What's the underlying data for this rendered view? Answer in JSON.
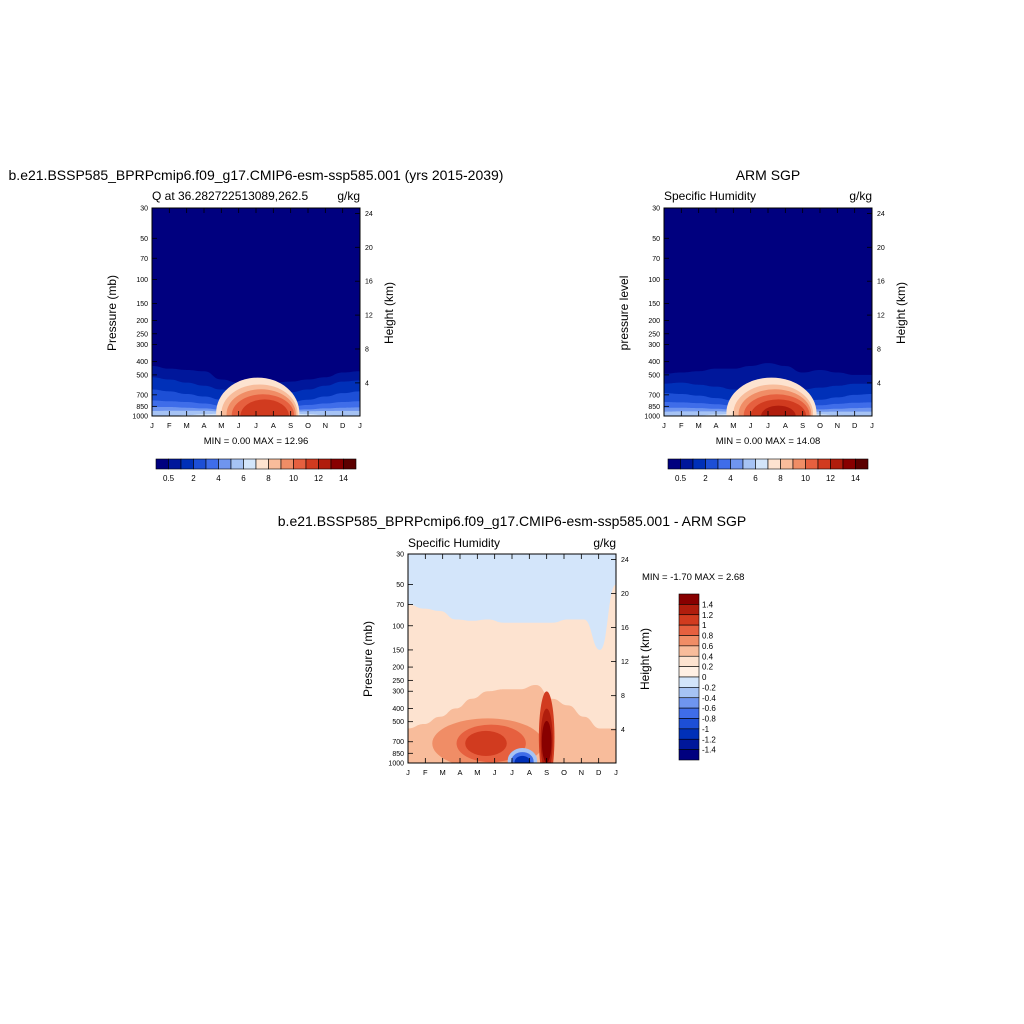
{
  "chart_data": [
    {
      "type": "heatmap",
      "title": "b.e21.BSSP585_BPRPcmip6.f09_g17.CMIP6-esm-ssp585.001 (yrs 2015-2039)",
      "left_label": "Q at 36.282722513089,262.5",
      "right_label": "g/kg",
      "ylabel": "Pressure (mb)",
      "ylabel_right": "Height (km)",
      "x_ticks": [
        "J",
        "F",
        "M",
        "A",
        "M",
        "J",
        "J",
        "A",
        "S",
        "O",
        "N",
        "D",
        "J"
      ],
      "y_ticks": [
        30,
        50,
        70,
        100,
        150,
        200,
        250,
        300,
        400,
        500,
        700,
        850,
        1000
      ],
      "height_ticks": [
        24,
        20,
        16,
        12,
        8,
        4
      ],
      "ylim": [
        30,
        1000
      ],
      "y_scale": "log",
      "minmax_text": "MIN =   0.00 MAX =  12.96",
      "min": 0.0,
      "max": 12.96,
      "colorbar": {
        "orientation": "horizontal",
        "labels": [
          "0.5",
          "2",
          "4",
          "6",
          "8",
          "10",
          "12",
          "14"
        ],
        "levels": [
          0.5,
          1,
          2,
          3,
          4,
          5,
          6,
          7,
          8,
          9,
          10,
          11,
          12,
          13,
          14
        ],
        "colors": [
          "#00007f",
          "#00179b",
          "#0030b8",
          "#1d4fd6",
          "#3f6de9",
          "#6f95ef",
          "#a6c3f4",
          "#d3e5fa",
          "#fde3d0",
          "#f8bc9b",
          "#f08d66",
          "#e6603f",
          "#d13b1f",
          "#b01d0d",
          "#880000",
          "#5c0000"
        ]
      },
      "contours": [
        {
          "level": 0.5,
          "color": "#00179b",
          "y": [
            430,
            450,
            460,
            470,
            540,
            570,
            600,
            570,
            560,
            540,
            520,
            480,
            470
          ]
        },
        {
          "level": 1,
          "color": "#0030b8",
          "y": [
            520,
            540,
            570,
            600,
            640,
            680,
            700,
            690,
            670,
            640,
            600,
            560,
            550
          ]
        },
        {
          "level": 2,
          "color": "#1d4fd6",
          "y": [
            640,
            660,
            690,
            720,
            760,
            790,
            810,
            800,
            790,
            760,
            720,
            680,
            660
          ]
        },
        {
          "level": 3,
          "color": "#3f6de9",
          "y": [
            770,
            780,
            790,
            810,
            840,
            860,
            870,
            860,
            850,
            830,
            810,
            790,
            780
          ]
        },
        {
          "level": 4,
          "color": "#6f95ef",
          "y": [
            860,
            860,
            870,
            880,
            900,
            910,
            915,
            910,
            905,
            895,
            880,
            870,
            865
          ]
        },
        {
          "level": 5,
          "color": "#a6c3f4",
          "y": [
            920,
            915,
            915,
            915,
            925,
            930,
            935,
            930,
            930,
            925,
            920,
            918,
            918
          ]
        },
        {
          "level": 6,
          "color": "#d3e5fa",
          "y": [
            1000,
            1000,
            985,
            970,
            960,
            955,
            955,
            955,
            960,
            968,
            985,
            1000,
            1000
          ]
        }
      ],
      "blobs": [
        {
          "level": 8,
          "color": "#fde3d0",
          "cx": 6.1,
          "cy": 950,
          "rx": 2.4,
          "ry": 0.17
        },
        {
          "level": 9,
          "color": "#f8bc9b",
          "cx": 6.2,
          "cy": 960,
          "rx": 2.2,
          "ry": 0.14
        },
        {
          "level": 10,
          "color": "#f08d66",
          "cx": 6.3,
          "cy": 970,
          "rx": 2.0,
          "ry": 0.12
        },
        {
          "level": 11,
          "color": "#e6603f",
          "cx": 6.4,
          "cy": 985,
          "rx": 1.8,
          "ry": 0.1
        },
        {
          "level": 12,
          "color": "#d13b1f",
          "cx": 6.5,
          "cy": 1000,
          "rx": 1.4,
          "ry": 0.08
        }
      ]
    },
    {
      "type": "heatmap",
      "title": "ARM SGP",
      "left_label": "Specific Humidity",
      "right_label": "g/kg",
      "ylabel": "pressure level",
      "ylabel_right": "Height (km)",
      "x_ticks": [
        "J",
        "F",
        "M",
        "A",
        "M",
        "J",
        "J",
        "A",
        "S",
        "O",
        "N",
        "D",
        "J"
      ],
      "y_ticks": [
        30,
        50,
        70,
        100,
        150,
        200,
        250,
        300,
        400,
        500,
        700,
        850,
        1000
      ],
      "height_ticks": [
        24,
        20,
        16,
        12,
        8,
        4
      ],
      "ylim": [
        30,
        1000
      ],
      "y_scale": "log",
      "minmax_text": "MIN =   0.00 MAX =  14.08",
      "min": 0.0,
      "max": 14.08,
      "colorbar": {
        "orientation": "horizontal",
        "labels": [
          "0.5",
          "2",
          "4",
          "6",
          "8",
          "10",
          "12",
          "14"
        ],
        "levels": [
          0.5,
          1,
          2,
          3,
          4,
          5,
          6,
          7,
          8,
          9,
          10,
          11,
          12,
          13,
          14
        ],
        "colors": [
          "#00007f",
          "#00179b",
          "#0030b8",
          "#1d4fd6",
          "#3f6de9",
          "#6f95ef",
          "#a6c3f4",
          "#d3e5fa",
          "#fde3d0",
          "#f8bc9b",
          "#f08d66",
          "#e6603f",
          "#d13b1f",
          "#b01d0d",
          "#880000",
          "#5c0000"
        ]
      },
      "contours": [
        {
          "level": 0.5,
          "color": "#00179b",
          "y": [
            490,
            480,
            470,
            450,
            450,
            430,
            410,
            430,
            480,
            460,
            480,
            500,
            500
          ]
        },
        {
          "level": 1,
          "color": "#0030b8",
          "y": [
            580,
            570,
            590,
            610,
            640,
            660,
            660,
            650,
            640,
            620,
            600,
            580,
            580
          ]
        },
        {
          "level": 2,
          "color": "#1d4fd6",
          "y": [
            680,
            690,
            710,
            740,
            770,
            790,
            800,
            790,
            780,
            760,
            730,
            700,
            690
          ]
        },
        {
          "level": 3,
          "color": "#3f6de9",
          "y": [
            790,
            795,
            805,
            820,
            840,
            855,
            860,
            855,
            850,
            835,
            815,
            800,
            795
          ]
        },
        {
          "level": 4,
          "color": "#6f95ef",
          "y": [
            870,
            870,
            875,
            885,
            900,
            910,
            915,
            910,
            905,
            895,
            885,
            875,
            870
          ]
        },
        {
          "level": 5,
          "color": "#a6c3f4",
          "y": [
            930,
            925,
            925,
            925,
            930,
            935,
            938,
            935,
            935,
            930,
            928,
            928,
            928
          ]
        },
        {
          "level": 6,
          "color": "#d3e5fa",
          "y": [
            1000,
            1000,
            990,
            975,
            962,
            955,
            952,
            955,
            960,
            970,
            988,
            1000,
            1000
          ]
        }
      ],
      "blobs": [
        {
          "level": 8,
          "color": "#fde3d0",
          "cx": 6.2,
          "cy": 950,
          "rx": 2.6,
          "ry": 0.17
        },
        {
          "level": 9,
          "color": "#f8bc9b",
          "cx": 6.3,
          "cy": 960,
          "rx": 2.3,
          "ry": 0.14
        },
        {
          "level": 10,
          "color": "#f08d66",
          "cx": 6.4,
          "cy": 970,
          "rx": 2.1,
          "ry": 0.12
        },
        {
          "level": 11,
          "color": "#e6603f",
          "cx": 6.5,
          "cy": 985,
          "rx": 1.9,
          "ry": 0.1
        },
        {
          "level": 12,
          "color": "#d13b1f",
          "cx": 6.6,
          "cy": 1000,
          "rx": 1.6,
          "ry": 0.08
        },
        {
          "level": 13,
          "color": "#b01d0d",
          "cx": 6.6,
          "cy": 1000,
          "rx": 1.0,
          "ry": 0.05
        }
      ]
    },
    {
      "type": "heatmap",
      "title": "b.e21.BSSP585_BPRPcmip6.f09_g17.CMIP6-esm-ssp585.001 - ARM SGP",
      "left_label": "Specific Humidity",
      "right_label": "g/kg",
      "ylabel": "Pressure (mb)",
      "ylabel_right": "Height (km)",
      "x_ticks": [
        "J",
        "F",
        "M",
        "A",
        "M",
        "J",
        "J",
        "A",
        "S",
        "O",
        "N",
        "D",
        "J"
      ],
      "y_ticks": [
        30,
        50,
        70,
        100,
        150,
        200,
        250,
        300,
        400,
        500,
        700,
        850,
        1000
      ],
      "height_ticks": [
        24,
        20,
        16,
        12,
        8,
        4
      ],
      "ylim": [
        30,
        1000
      ],
      "y_scale": "log",
      "minmax_text": "MIN =  -1.70 MAX =   2.68",
      "min": -1.7,
      "max": 2.68,
      "colorbar": {
        "orientation": "vertical",
        "labels": [
          "1.4",
          "1.2",
          "1",
          "0.8",
          "0.6",
          "0.4",
          "0.2",
          "0",
          "-0.2",
          "-0.4",
          "-0.6",
          "-0.8",
          "-1",
          "-1.2",
          "-1.4"
        ],
        "colors": [
          "#880000",
          "#b01d0d",
          "#d13b1f",
          "#e6603f",
          "#f08d66",
          "#f8bc9b",
          "#fde3d0",
          "#fff0e4",
          "#d3e5fa",
          "#a6c3f4",
          "#6f95ef",
          "#3f6de9",
          "#1d4fd6",
          "#0030b8",
          "#00179b",
          "#00007f"
        ]
      },
      "background_color": "#d3e5fa",
      "regions": [
        {
          "level": "0 to 0.2",
          "color": "#fde3d0",
          "top": [
            70,
            75,
            78,
            90,
            92,
            90,
            95,
            95,
            95,
            95,
            90,
            90,
            150,
            50
          ],
          "bottom": 1000
        },
        {
          "level": "0.2 to 0.4",
          "color": "#f8bc9b",
          "top": [
            560,
            520,
            460,
            400,
            340,
            300,
            290,
            290,
            270,
            340,
            380,
            460,
            560,
            560
          ],
          "bottom": 1000
        }
      ],
      "blobs": [
        {
          "level": 0.6,
          "color": "#f08d66",
          "cx": 4.6,
          "cy": 720,
          "rx": 3.2,
          "ry": 0.12
        },
        {
          "level": 0.8,
          "color": "#e6603f",
          "cx": 4.8,
          "cy": 720,
          "rx": 2.0,
          "ry": 0.09
        },
        {
          "level": 1.0,
          "color": "#d13b1f",
          "cx": 4.5,
          "cy": 720,
          "rx": 1.2,
          "ry": 0.06
        },
        {
          "level": 1.0,
          "color": "#d13b1f",
          "cx": 8.0,
          "cy": 650,
          "rx": 0.45,
          "ry": 0.22
        },
        {
          "level": 1.2,
          "color": "#b01d0d",
          "cx": 8.0,
          "cy": 680,
          "rx": 0.35,
          "ry": 0.15
        },
        {
          "level": 1.4,
          "color": "#880000",
          "cx": 8.0,
          "cy": 700,
          "rx": 0.28,
          "ry": 0.1
        },
        {
          "level": -0.4,
          "color": "#a6c3f4",
          "cx": 6.6,
          "cy": 960,
          "rx": 0.85,
          "ry": 0.06
        },
        {
          "level": -0.8,
          "color": "#3f6de9",
          "cx": 6.6,
          "cy": 975,
          "rx": 0.65,
          "ry": 0.045
        },
        {
          "level": -1.2,
          "color": "#0030b8",
          "cx": 6.6,
          "cy": 985,
          "rx": 0.45,
          "ry": 0.03
        }
      ]
    }
  ]
}
